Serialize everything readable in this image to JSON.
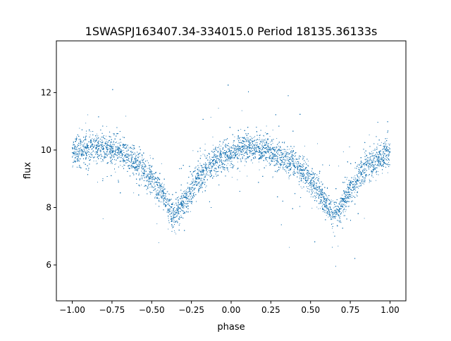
{
  "chart_data": {
    "type": "scatter",
    "title": "1SWASPJ163407.34-334015.0 Period 18135.36133s",
    "xlabel": "phase",
    "ylabel": "flux",
    "xlim": [
      -1.1,
      1.1
    ],
    "ylim": [
      4.75,
      13.8
    ],
    "x_ticks": [
      -1.0,
      -0.75,
      -0.5,
      -0.25,
      0.0,
      0.25,
      0.5,
      0.75,
      1.0
    ],
    "x_tick_labels": [
      "−1.00",
      "−0.75",
      "−0.50",
      "−0.25",
      "0.00",
      "0.25",
      "0.50",
      "0.75",
      "1.00"
    ],
    "y_ticks": [
      6,
      8,
      10,
      12
    ],
    "y_tick_labels": [
      "6",
      "8",
      "10",
      "12"
    ],
    "grid": false,
    "legend": "none",
    "marker_color": "#1f77b4",
    "series": [
      {
        "point_count": 20000,
        "mean_curve": {
          "x": [
            -1.0,
            -0.9,
            -0.8,
            -0.7,
            -0.6,
            -0.5,
            -0.45,
            -0.4,
            -0.35,
            -0.3,
            -0.25,
            -0.2,
            -0.1,
            0.0,
            0.1,
            0.2,
            0.3,
            0.4,
            0.5,
            0.55,
            0.6,
            0.65,
            0.7,
            0.75,
            0.8,
            0.9,
            1.0
          ],
          "y": [
            9.9,
            10.0,
            10.1,
            9.95,
            9.6,
            9.0,
            8.6,
            8.1,
            7.7,
            8.1,
            8.6,
            9.1,
            9.6,
            9.9,
            10.1,
            10.0,
            9.8,
            9.5,
            9.0,
            8.6,
            8.1,
            7.7,
            8.1,
            8.6,
            9.1,
            9.6,
            9.9
          ]
        },
        "scatter_sigma": 0.25
      }
    ]
  }
}
